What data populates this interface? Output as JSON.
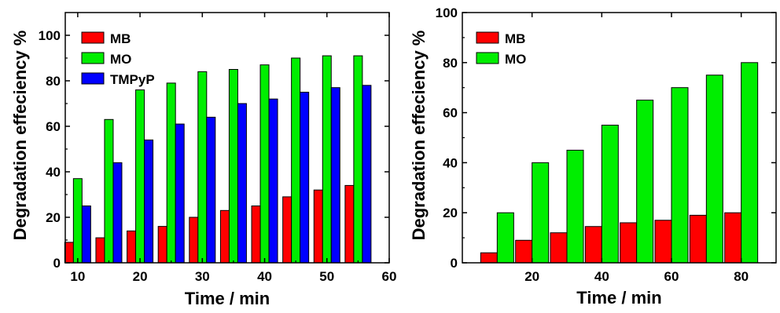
{
  "chart_data": [
    {
      "type": "bar",
      "xlabel": "Time / min",
      "ylabel": "Degradation effeciency %",
      "xlim": [
        8,
        60
      ],
      "ylim": [
        0,
        110
      ],
      "x_ticks": [
        "10",
        "20",
        "30",
        "40",
        "50",
        "60"
      ],
      "y_ticks": [
        "0",
        "20",
        "40",
        "60",
        "80",
        "100"
      ],
      "x": [
        10,
        15,
        20,
        25,
        30,
        35,
        40,
        45,
        50,
        55
      ],
      "series": [
        {
          "name": "MB",
          "color": "#ff0000",
          "values": [
            9,
            11,
            14,
            16,
            20,
            23,
            25,
            29,
            32,
            34
          ]
        },
        {
          "name": "MO",
          "color": "#00ee00",
          "values": [
            37,
            63,
            76,
            79,
            84,
            85,
            87,
            90,
            91,
            91
          ]
        },
        {
          "name": "TMPyP",
          "color": "#0000ff",
          "values": [
            25,
            44,
            54,
            61,
            64,
            70,
            72,
            75,
            77,
            78
          ]
        }
      ],
      "legend": "top-left",
      "grid": false
    },
    {
      "type": "bar",
      "xlabel": "Time / min",
      "ylabel": "Degradation effeciency %",
      "xlim": [
        0,
        90
      ],
      "ylim": [
        0,
        100
      ],
      "x_ticks": [
        "20",
        "40",
        "60",
        "80"
      ],
      "y_ticks": [
        "0",
        "20",
        "40",
        "60",
        "80",
        "100"
      ],
      "x": [
        10,
        20,
        30,
        40,
        50,
        60,
        70,
        80
      ],
      "series": [
        {
          "name": "MB",
          "color": "#ff0000",
          "values": [
            4,
            9,
            12,
            14.5,
            16,
            17,
            19,
            20
          ]
        },
        {
          "name": "MO",
          "color": "#00ee00",
          "values": [
            20,
            40,
            45,
            55,
            65,
            70,
            75,
            80
          ]
        }
      ],
      "legend": "top-left",
      "grid": false
    }
  ]
}
